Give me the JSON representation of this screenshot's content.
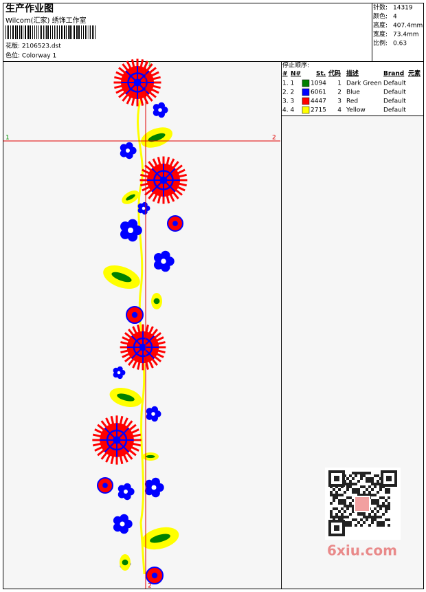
{
  "header": {
    "title": "生产作业图",
    "studio": "Wilcom(汇家) 绣饰工作室",
    "design": "花版: 2106523.dst",
    "colorway": "色位: Colorway 1"
  },
  "stats": [
    {
      "label": "针数:",
      "value": "14319"
    },
    {
      "label": "颜色:",
      "value": "4"
    },
    {
      "label": "高度:",
      "value": "407.4mm"
    },
    {
      "label": "宽度:",
      "value": "73.4mm"
    },
    {
      "label": "比例:",
      "value": "0.63"
    }
  ],
  "canvas": {
    "left": "1",
    "right": "2",
    "top": "1",
    "bottom": "2"
  },
  "stop_sequence": {
    "title": "停止顺序:",
    "columns": [
      "#",
      "N#",
      "St.",
      "代码",
      "描述",
      "Brand",
      "元素"
    ],
    "rows": [
      {
        "num": "1. 1",
        "color": "#008000",
        "stitches": "1094",
        "code": "1",
        "description": "Dark Green",
        "brand": "Default"
      },
      {
        "num": "2. 2",
        "color": "#0000ff",
        "stitches": "6061",
        "code": "2",
        "description": "Blue",
        "brand": "Default"
      },
      {
        "num": "3. 3",
        "color": "#ff0000",
        "stitches": "4447",
        "code": "3",
        "description": "Red",
        "brand": "Default"
      },
      {
        "num": "4. 4",
        "color": "#ffff00",
        "stitches": "2715",
        "code": "4",
        "description": "Yellow",
        "brand": "Default"
      }
    ]
  },
  "watermark": "6xiu.com"
}
